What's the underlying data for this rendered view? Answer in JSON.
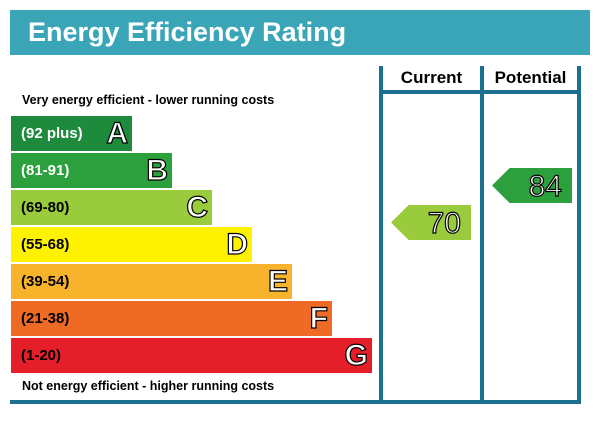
{
  "title": "Energy Efficiency Rating",
  "chart_data": {
    "type": "bar",
    "columns": [
      "Current",
      "Potential"
    ],
    "top_note": "Very energy efficient - lower running costs",
    "bottom_note": "Not energy efficient - higher running costs",
    "bands": [
      {
        "letter": "A",
        "range": "(92 plus)",
        "color": "#1e8a3c",
        "text_color": "#ffffff"
      },
      {
        "letter": "B",
        "range": "(81-91)",
        "color": "#2ca03c",
        "text_color": "#ffffff"
      },
      {
        "letter": "C",
        "range": "(69-80)",
        "color": "#9acb3c",
        "text_color": "#000000"
      },
      {
        "letter": "D",
        "range": "(55-68)",
        "color": "#fff200",
        "text_color": "#000000"
      },
      {
        "letter": "E",
        "range": "(39-54)",
        "color": "#f7b32b",
        "text_color": "#000000"
      },
      {
        "letter": "F",
        "range": "(21-38)",
        "color": "#ee6a25",
        "text_color": "#000000"
      },
      {
        "letter": "G",
        "range": "(1-20)",
        "color": "#e51f2a",
        "text_color": "#000000"
      }
    ],
    "current": {
      "value": "70",
      "band": "C",
      "color": "#9acb3c"
    },
    "potential": {
      "value": "84",
      "band": "B",
      "color": "#2ca03c"
    }
  }
}
